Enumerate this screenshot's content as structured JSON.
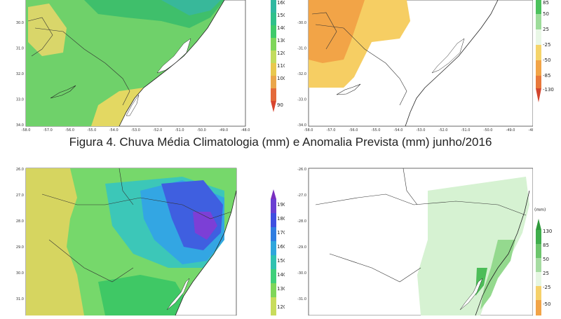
{
  "caption": "Figura 4. Chuva Média Climatologia (mm) e Anomalia Prevista (mm) junho/2016",
  "top_left": {
    "lat_ticks": [
      "30.0",
      "31.0",
      "32.0",
      "33.0",
      "34.0"
    ],
    "lon_ticks": [
      "-58.0",
      "-57.0",
      "-56.0",
      "-55.0",
      "-54.0",
      "-53.0",
      "-52.0",
      "-51.0",
      "-50.0",
      "-49.0",
      "-48.0"
    ],
    "colorbar": [
      "160",
      "150",
      "140",
      "130",
      "120",
      "110",
      "100",
      "90"
    ]
  },
  "top_right": {
    "lat_ticks": [
      "-30.0",
      "-31.0",
      "-32.0",
      "-33.0",
      "-34.0"
    ],
    "lon_ticks": [
      "-58.0",
      "-57.0",
      "-56.0",
      "-55.0",
      "-54.0",
      "-53.0",
      "-52.0",
      "-51.0",
      "-50.0",
      "-49.0",
      "-48.0"
    ],
    "colorbar": [
      "85",
      "50",
      "25",
      "-25",
      "-50",
      "-85",
      "-130"
    ]
  },
  "bottom_left": {
    "lat_ticks": [
      "26.0",
      "27.0",
      "28.0",
      "29.0",
      "30.0",
      "31.0"
    ],
    "colorbar": [
      "190",
      "180",
      "170",
      "160",
      "150",
      "140",
      "130",
      "120"
    ]
  },
  "bottom_right": {
    "lat_ticks": [
      "-26.0",
      "-27.0",
      "-28.0",
      "-29.0",
      "-30.0",
      "-31.0"
    ],
    "unit": "(mm)",
    "colorbar": [
      "130",
      "85",
      "50",
      "25",
      "-25",
      "-50"
    ]
  },
  "colors": {
    "clim_green": "#5fd35f",
    "clim_yellow": "#e8d35c",
    "clim_blue": "#2f7de0",
    "anom_orange": "#f5a94a",
    "anom_yellow": "#f7d268",
    "anom_lightgreen": "#ccefcc"
  }
}
